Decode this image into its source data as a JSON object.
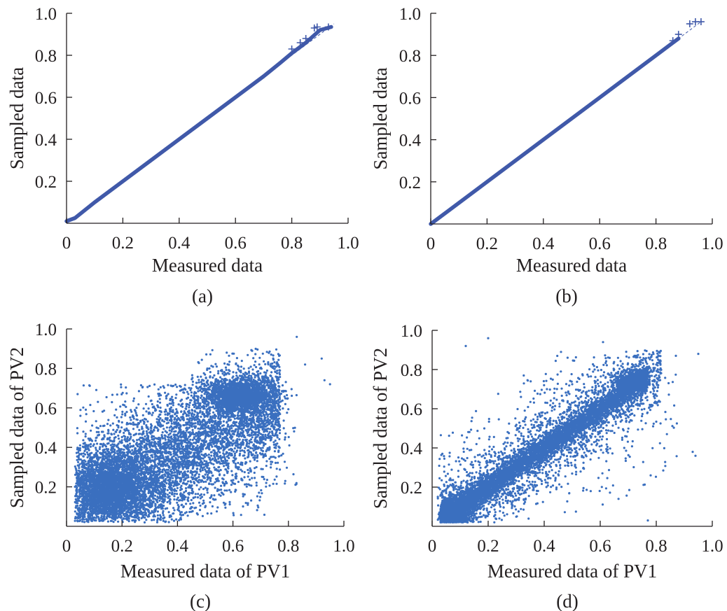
{
  "chart_data": [
    {
      "id": "a",
      "type": "scatter",
      "caption": "(a)",
      "xlabel": "Measured data",
      "ylabel": "Sampled data",
      "xlim": [
        0,
        1
      ],
      "ylim": [
        0,
        1
      ],
      "xticks": [
        0,
        0.2,
        0.4,
        0.6,
        0.8,
        1.0
      ],
      "xtick_labels": [
        "0",
        "0.2",
        "0.4",
        "0.6",
        "0.8",
        "1.0"
      ],
      "yticks": [
        0.2,
        0.4,
        0.6,
        0.8,
        1.0
      ],
      "ytick_labels": [
        "0.2",
        "0.4",
        "0.6",
        "0.8",
        "1.0"
      ],
      "grid": false,
      "style": "qq-plot",
      "marker": "+",
      "color": "#4059a9",
      "reference_line": [
        [
          0,
          0
        ],
        [
          0.95,
          0.95
        ]
      ],
      "qq_line": {
        "x": [
          0,
          0.03,
          0.1,
          0.3,
          0.5,
          0.7,
          0.76,
          0.8,
          0.85,
          0.9,
          0.94
        ],
        "y": [
          0.01,
          0.025,
          0.1,
          0.3,
          0.5,
          0.7,
          0.765,
          0.81,
          0.86,
          0.92,
          0.935
        ]
      },
      "outlier_points": [
        [
          0.8,
          0.83
        ],
        [
          0.83,
          0.86
        ],
        [
          0.85,
          0.88
        ],
        [
          0.88,
          0.93
        ],
        [
          0.89,
          0.935
        ],
        [
          0.93,
          0.935
        ]
      ]
    },
    {
      "id": "b",
      "type": "scatter",
      "caption": "(b)",
      "xlabel": "Measured data",
      "ylabel": "Sampled data",
      "xlim": [
        0,
        1
      ],
      "ylim": [
        0,
        1
      ],
      "xticks": [
        0,
        0.2,
        0.4,
        0.6,
        0.8,
        1.0
      ],
      "xtick_labels": [
        "0",
        "0.2",
        "0.4",
        "0.6",
        "0.8",
        "1.0"
      ],
      "yticks": [
        0.2,
        0.4,
        0.6,
        0.8,
        1.0
      ],
      "ytick_labels": [
        "0.2",
        "0.4",
        "0.6",
        "0.8",
        "1.0"
      ],
      "grid": false,
      "style": "qq-plot",
      "marker": "+",
      "color": "#4059a9",
      "reference_line": [
        [
          0,
          0
        ],
        [
          0.96,
          0.96
        ]
      ],
      "qq_line": {
        "x": [
          0,
          0.2,
          0.4,
          0.6,
          0.8,
          0.86,
          0.88
        ],
        "y": [
          0,
          0.2,
          0.4,
          0.6,
          0.8,
          0.86,
          0.88
        ]
      },
      "outlier_points": [
        [
          0.86,
          0.87
        ],
        [
          0.88,
          0.9
        ],
        [
          0.92,
          0.95
        ],
        [
          0.94,
          0.96
        ],
        [
          0.96,
          0.96
        ]
      ]
    },
    {
      "id": "c",
      "type": "scatter",
      "caption": "(c)",
      "xlabel": "Measured data of PV1",
      "ylabel": "Sampled data of PV2",
      "xlim": [
        0,
        1
      ],
      "ylim": [
        0,
        1
      ],
      "xticks": [
        0,
        0.2,
        0.4,
        0.6,
        0.8,
        1.0
      ],
      "xtick_labels": [
        "0",
        "0.2",
        "0.4",
        "0.6",
        "0.8",
        "1.0"
      ],
      "yticks": [
        0.2,
        0.4,
        0.6,
        0.8,
        1.0
      ],
      "ytick_labels": [
        "0.2",
        "0.4",
        "0.6",
        "0.8",
        "1.0"
      ],
      "grid": false,
      "style": "dense-scatter",
      "marker": "dot",
      "color": "#3a6fbf",
      "cloud": {
        "x_range": [
          0.02,
          0.96
        ],
        "y_range": [
          0.02,
          0.96
        ],
        "correlation": "weak positive",
        "dense_cores": [
          {
            "x": 0.12,
            "y": 0.18,
            "sx": 0.07,
            "sy": 0.08
          },
          {
            "x": 0.62,
            "y": 0.66,
            "sx": 0.07,
            "sy": 0.05
          }
        ]
      },
      "outlier_points": [
        [
          0.83,
          0.96
        ],
        [
          0.86,
          0.82
        ],
        [
          0.92,
          0.85
        ],
        [
          0.95,
          0.72
        ],
        [
          0.93,
          0.74
        ],
        [
          0.79,
          0.47
        ],
        [
          0.72,
          0.38
        ],
        [
          0.41,
          0.06
        ],
        [
          0.05,
          0.56
        ]
      ]
    },
    {
      "id": "d",
      "type": "scatter",
      "caption": "(d)",
      "xlabel": "Measured data of PV1",
      "ylabel": "Sampled data of PV2",
      "xlim": [
        0,
        1
      ],
      "ylim": [
        0,
        1
      ],
      "xticks": [
        0,
        0.2,
        0.4,
        0.6,
        0.8,
        1.0
      ],
      "xtick_labels": [
        "0",
        "0.2",
        "0.4",
        "0.6",
        "0.8",
        "1.0"
      ],
      "yticks": [
        0.2,
        0.4,
        0.6,
        0.8,
        1.0
      ],
      "ytick_labels": [
        "0.2",
        "0.4",
        "0.6",
        "0.8",
        "1.0"
      ],
      "grid": false,
      "style": "dense-scatter",
      "marker": "dot",
      "color": "#3a6fbf",
      "cloud": {
        "x_range": [
          0.02,
          0.96
        ],
        "y_range": [
          0.02,
          0.96
        ],
        "correlation": "strong positive",
        "dense_diagonal": {
          "x_from": 0.03,
          "x_to": 0.78,
          "width": 0.035
        },
        "dense_cores": [
          {
            "x": 0.05,
            "y": 0.05,
            "sx": 0.03,
            "sy": 0.03
          },
          {
            "x": 0.72,
            "y": 0.74,
            "sx": 0.04,
            "sy": 0.03
          }
        ]
      },
      "outlier_points": [
        [
          0.2,
          0.96
        ],
        [
          0.61,
          0.94
        ],
        [
          0.87,
          0.87
        ],
        [
          0.93,
          0.38
        ],
        [
          0.94,
          0.36
        ],
        [
          0.95,
          0.88
        ],
        [
          0.77,
          0.03
        ],
        [
          0.12,
          0.92
        ],
        [
          0.46,
          0.89
        ]
      ]
    }
  ]
}
